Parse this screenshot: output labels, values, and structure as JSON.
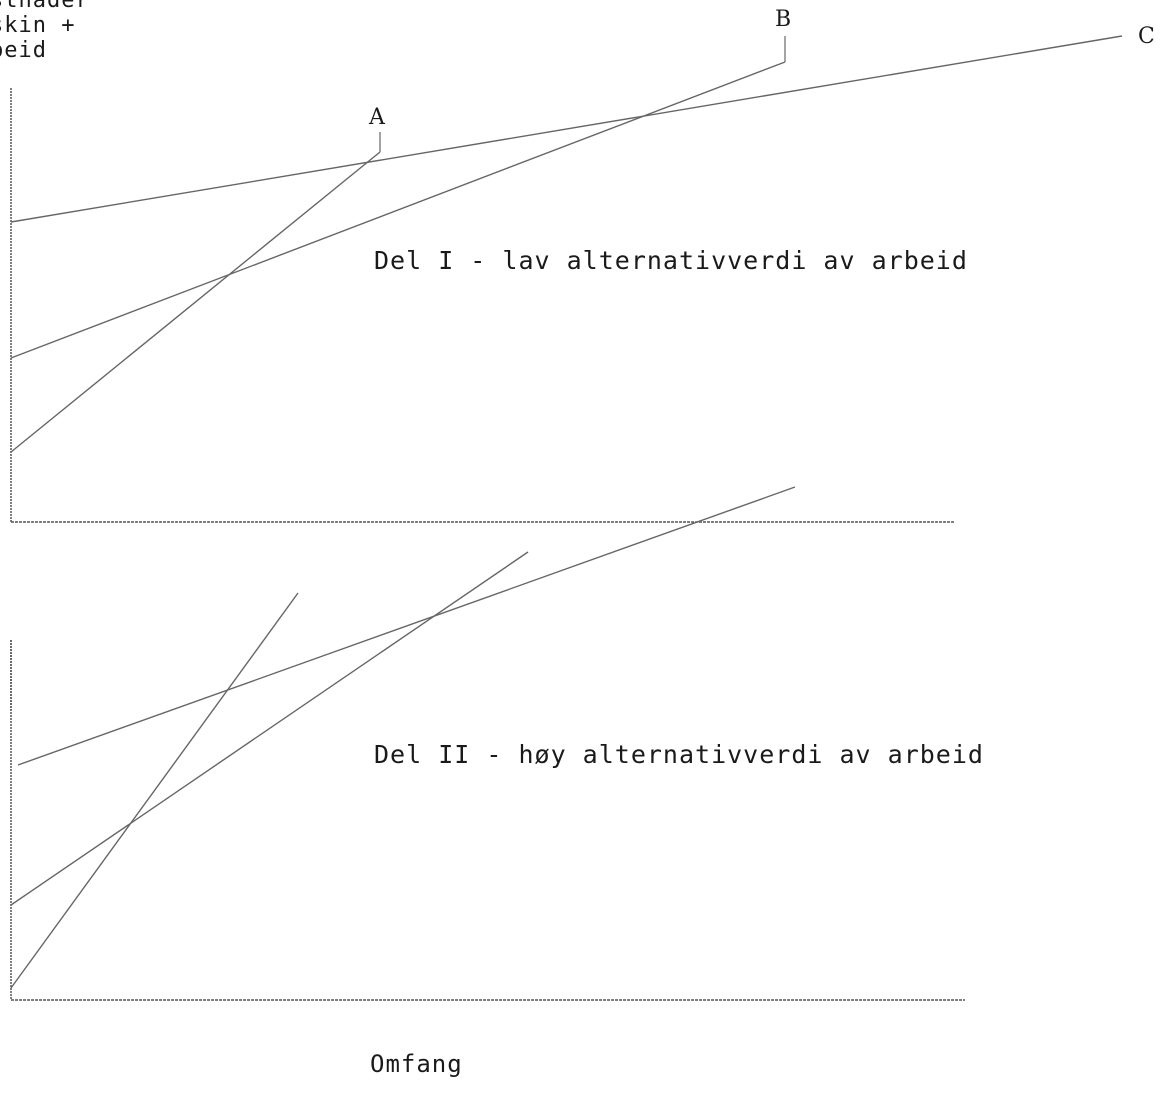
{
  "y_axis_label": {
    "line1": "stnader",
    "line2": "skin +",
    "line3": "beid"
  },
  "x_axis_label": "Omfang",
  "panels": [
    {
      "title": "Del I - lav alternativverdi av arbeid",
      "curve_labels": [
        "A",
        "B",
        "C"
      ]
    },
    {
      "title": "Del II - høy alternativverdi av arbeid"
    }
  ],
  "colors": {
    "ink": "#1a1a1a",
    "line": "#555555",
    "background": "#ffffff"
  }
}
